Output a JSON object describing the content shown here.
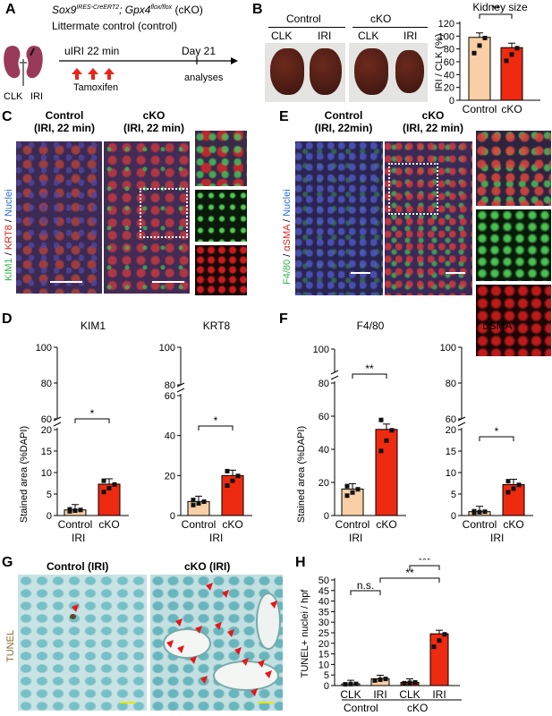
{
  "panels": {
    "A": {
      "label": "A",
      "genotype": "Sox9",
      "genotype_sup": "IRES-CreERT2",
      "genotype_mid": "; Gpx4",
      "genotype_sup2": "flox/flox",
      "genotype_end": " (cKO)",
      "control_line": "Littermate control (control)",
      "kidney_labels": [
        "CLK",
        "IRI"
      ],
      "injury": "uIRI 22 min",
      "drug": "Tamoxifen",
      "endpoint": "Day 21",
      "endpoint_sub": "analyses"
    },
    "B": {
      "label": "B",
      "groups": [
        "Control",
        "cKO"
      ],
      "sides": [
        "CLK",
        "IRI",
        "CLK",
        "IRI"
      ],
      "chart_title": "Kidney size",
      "sig": "**"
    },
    "C": {
      "label": "C",
      "titles": [
        "Control\n(IRI, 22 min)",
        "cKO\n(IRI, 22 min)"
      ],
      "stain": [
        "KIM1",
        " / ",
        "KRT8",
        " / ",
        "Nuclei"
      ]
    },
    "E": {
      "label": "E",
      "titles": [
        "Control\n(IRI, 22min)",
        "cKO\n(IRI, 22 min)"
      ],
      "stain": [
        "F4/80",
        " / ",
        "αSMA",
        " / ",
        "Nuclei"
      ]
    },
    "D": {
      "label": "D",
      "group_label": "IRI"
    },
    "F": {
      "label": "F",
      "group_label": "IRI"
    },
    "G": {
      "label": "G",
      "titles": [
        "Control (IRI)",
        "cKO (IRI)"
      ],
      "stain": "TUNEL"
    },
    "H": {
      "label": "H",
      "groups": [
        "Control",
        "cKO"
      ]
    }
  },
  "colors": {
    "control": "#f9cfa5",
    "cko": "#ee2a10",
    "kim1": "#2db34a",
    "krt8": "#e0201b",
    "nuclei": "#2a6fd6",
    "tunel": "#8a6a2a"
  },
  "chart_data": [
    {
      "id": "B",
      "type": "bar",
      "title": "Kidney size",
      "categories": [
        "Control",
        "cKO"
      ],
      "values": [
        98,
        82
      ],
      "ylabel": "IRI / CLK (%)",
      "ylim": [
        0,
        120
      ],
      "yticks": [
        0,
        20,
        40,
        60,
        80,
        100,
        120
      ],
      "sig": [
        {
          "from": 0,
          "to": 1,
          "text": "**"
        }
      ]
    },
    {
      "id": "D1",
      "type": "bar",
      "title": "KIM1",
      "categories": [
        "Control",
        "cKO"
      ],
      "values": [
        1.3,
        7.3
      ],
      "ylabel": "Stained area (%DAPI)",
      "ylim": [
        0,
        20
      ],
      "yticks": [
        0,
        5,
        10,
        15,
        20
      ],
      "break_ticks": [
        60,
        80,
        100
      ],
      "sig": [
        {
          "from": 0,
          "to": 1,
          "text": "*"
        }
      ]
    },
    {
      "id": "D2",
      "type": "bar",
      "title": "KRT8",
      "categories": [
        "Control",
        "cKO"
      ],
      "values": [
        7.0,
        20.0
      ],
      "ylabel": "",
      "ylim": [
        0,
        60
      ],
      "yticks": [
        0,
        20,
        40,
        60
      ],
      "break_ticks": [
        80,
        100
      ],
      "sig": [
        {
          "from": 0,
          "to": 1,
          "text": "*"
        }
      ]
    },
    {
      "id": "F1",
      "type": "bar",
      "title": "F4/80",
      "categories": [
        "Control",
        "cKO"
      ],
      "values": [
        16,
        52
      ],
      "ylabel": "Stained area (%DAPI)",
      "ylim": [
        0,
        80
      ],
      "yticks": [
        0,
        20,
        40,
        60,
        80
      ],
      "break_ticks": [
        100
      ],
      "sig": [
        {
          "from": 0,
          "to": 1,
          "text": "**"
        }
      ]
    },
    {
      "id": "F2",
      "type": "bar",
      "title": "αSMA",
      "categories": [
        "Control",
        "cKO"
      ],
      "values": [
        0.9,
        7.2
      ],
      "ylabel": "",
      "ylim": [
        0,
        20
      ],
      "yticks": [
        0,
        5,
        10,
        15,
        20
      ],
      "break_ticks": [
        60,
        80,
        100
      ],
      "sig": [
        {
          "from": 0,
          "to": 1,
          "text": "*"
        }
      ]
    },
    {
      "id": "H",
      "type": "bar",
      "categories": [
        "CLK",
        "IRI",
        "CLK",
        "IRI"
      ],
      "values": [
        0.8,
        3.2,
        1.5,
        24.5
      ],
      "ylabel": "TUNEL+ nuclei / hpf",
      "ylim": [
        0,
        50
      ],
      "yticks": [
        0,
        5,
        10,
        15,
        20,
        25,
        30,
        35,
        40,
        45,
        50
      ],
      "sig": [
        {
          "from": 0,
          "to": 1,
          "text": "n.s."
        },
        {
          "from": 1,
          "to": 3,
          "text": "**"
        },
        {
          "from": 2,
          "to": 3,
          "text": "***"
        }
      ]
    }
  ]
}
